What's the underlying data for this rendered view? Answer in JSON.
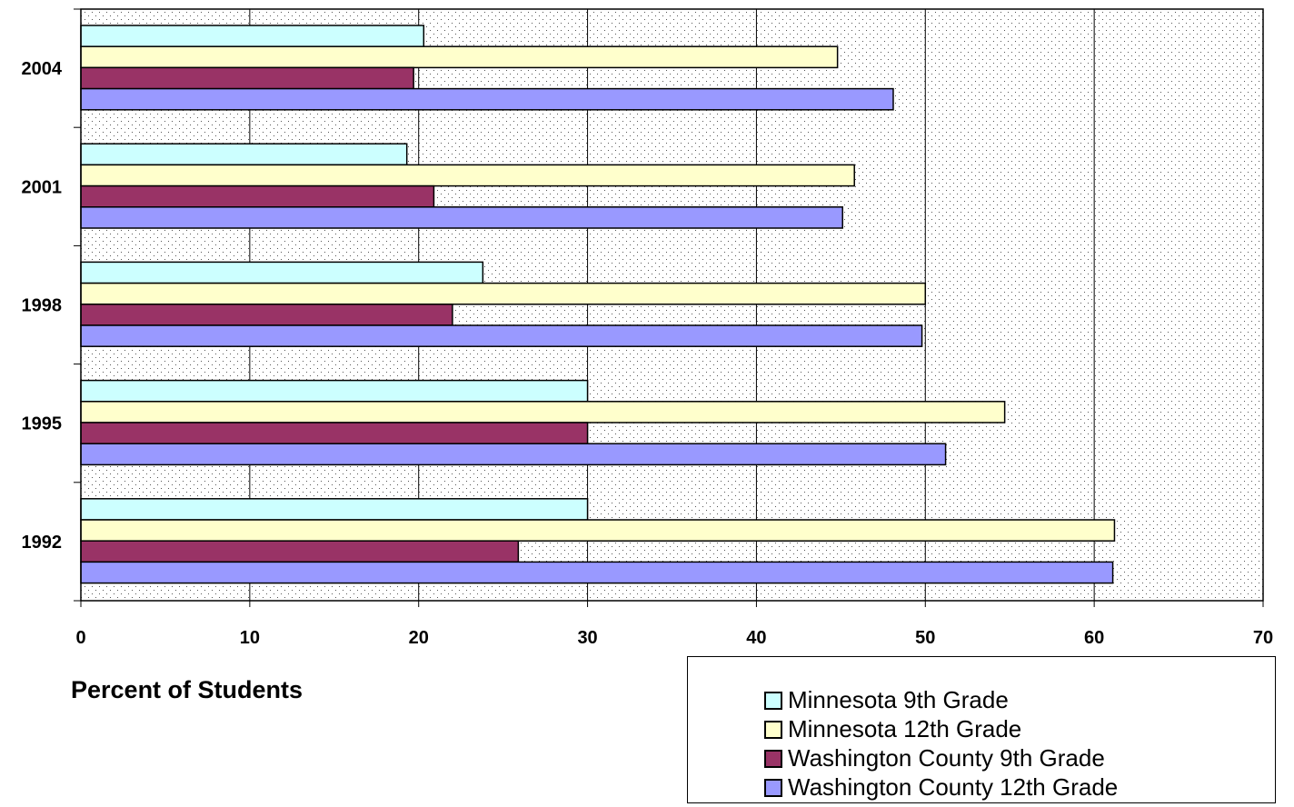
{
  "chart_data": {
    "type": "bar",
    "orientation": "horizontal",
    "categories": [
      "2004",
      "2001",
      "1998",
      "1995",
      "1992"
    ],
    "series": [
      {
        "name": "Minnesota 9th Grade",
        "color": "#CCFFFF",
        "values": [
          20.3,
          19.3,
          23.8,
          30.0,
          30.0
        ]
      },
      {
        "name": "Minnesota 12th Grade",
        "color": "#FFFFCC",
        "values": [
          44.8,
          45.8,
          50.0,
          54.7,
          61.2
        ]
      },
      {
        "name": "Washington County 9th Grade",
        "color": "#993366",
        "values": [
          19.7,
          20.9,
          22.0,
          30.0,
          25.9
        ]
      },
      {
        "name": "Washington County 12th Grade",
        "color": "#9999FF",
        "values": [
          48.1,
          45.1,
          49.8,
          51.2,
          61.1
        ]
      }
    ],
    "xlabel": "Percent of Students",
    "xlim": [
      0,
      70
    ],
    "xticks": [
      "0",
      "10",
      "20",
      "30",
      "40",
      "50",
      "60",
      "70"
    ],
    "grid": "vertical",
    "legend": "bottom-right"
  }
}
